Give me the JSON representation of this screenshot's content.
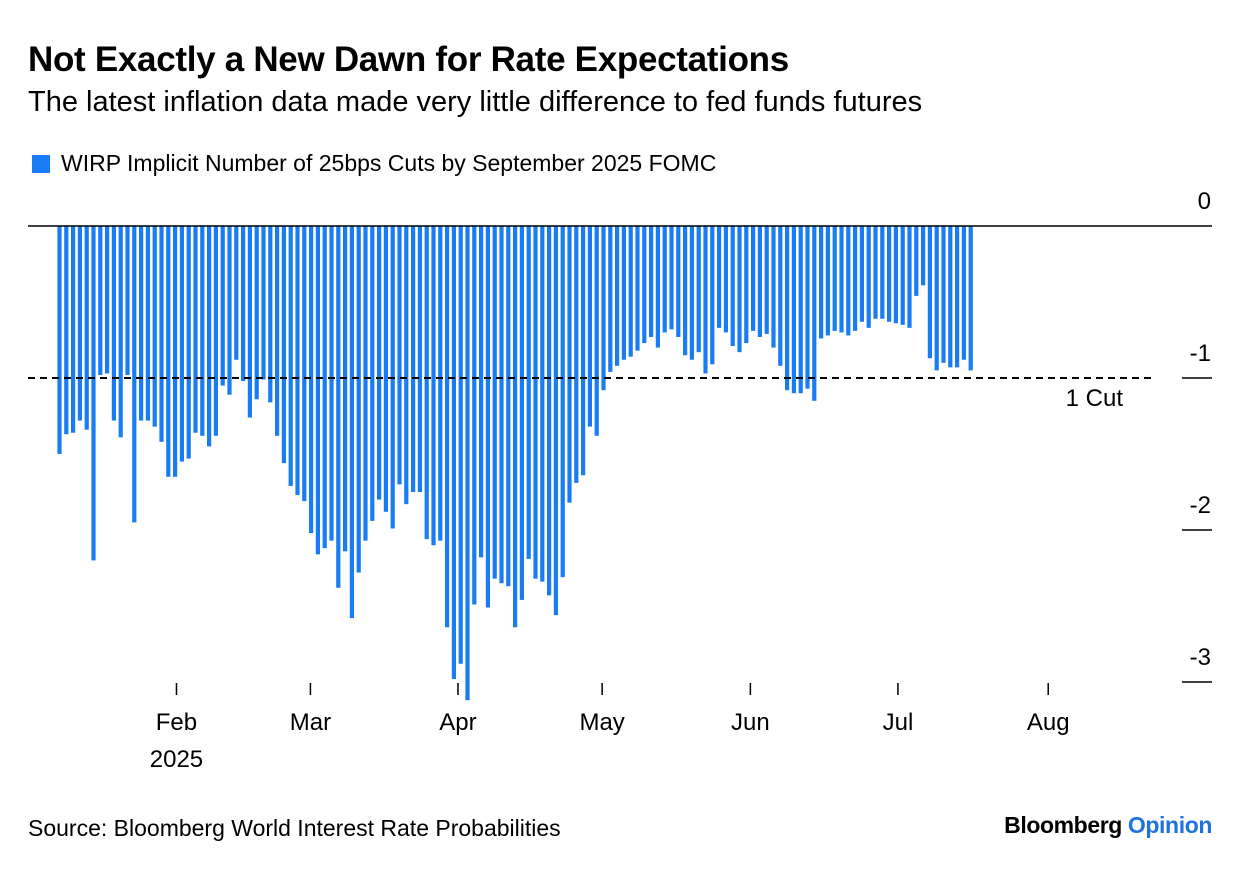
{
  "title": "Not Exactly a New Dawn for Rate Expectations",
  "subtitle": "The latest inflation data made very little difference to fed funds futures",
  "source": "Source: Bloomberg World Interest Rate Probabilities",
  "brand": {
    "name": "Bloomberg",
    "product": "Opinion",
    "name_color": "#000000",
    "product_color": "#1f73e0"
  },
  "colors": {
    "bar": "#1a7cf5",
    "axis": "#000000"
  },
  "chart_data": {
    "type": "bar",
    "legend": {
      "position": "top-left",
      "entries": [
        "WIRP Implicit Number of 25bps Cuts by September 2025 FOMC"
      ]
    },
    "series": [
      {
        "name": "WIRP Implicit Number of 25bps Cuts by September 2025 FOMC",
        "values": [
          -1.5,
          -1.37,
          -1.36,
          -1.28,
          -1.34,
          -2.2,
          -0.98,
          -0.97,
          -1.28,
          -1.39,
          -0.98,
          -1.95,
          -1.28,
          -1.28,
          -1.32,
          -1.42,
          -1.65,
          -1.65,
          -1.55,
          -1.53,
          -1.36,
          -1.38,
          -1.45,
          -1.38,
          -1.05,
          -1.11,
          -0.88,
          -1.02,
          -1.26,
          -1.14,
          -1.01,
          -1.16,
          -1.38,
          -1.56,
          -1.71,
          -1.77,
          -1.81,
          -2.02,
          -2.16,
          -2.12,
          -2.07,
          -2.38,
          -2.14,
          -2.58,
          -2.28,
          -2.07,
          -1.94,
          -1.8,
          -1.88,
          -1.99,
          -1.7,
          -1.83,
          -1.75,
          -1.75,
          -2.06,
          -2.1,
          -2.07,
          -2.64,
          -2.98,
          -2.88,
          -3.12,
          -2.49,
          -2.18,
          -2.51,
          -2.32,
          -2.35,
          -2.37,
          -2.64,
          -2.46,
          -2.19,
          -2.32,
          -2.34,
          -2.43,
          -2.56,
          -2.31,
          -1.82,
          -1.69,
          -1.64,
          -1.32,
          -1.38,
          -1.08,
          -0.96,
          -0.92,
          -0.88,
          -0.86,
          -0.82,
          -0.77,
          -0.73,
          -0.8,
          -0.7,
          -0.68,
          -0.73,
          -0.85,
          -0.88,
          -0.83,
          -0.97,
          -0.91,
          -0.67,
          -0.7,
          -0.79,
          -0.83,
          -0.77,
          -0.69,
          -0.73,
          -0.71,
          -0.8,
          -0.92,
          -1.08,
          -1.1,
          -1.1,
          -1.07,
          -1.15,
          -0.74,
          -0.72,
          -0.69,
          -0.7,
          -0.72,
          -0.69,
          -0.63,
          -0.67,
          -0.61,
          -0.61,
          -0.63,
          -0.64,
          -0.65,
          -0.67,
          -0.46,
          -0.39,
          -0.87,
          -0.95,
          -0.9,
          -0.93,
          -0.93,
          -0.88,
          -0.95
        ]
      }
    ],
    "x_ticks": [
      {
        "label": "Feb",
        "index": 17.2
      },
      {
        "label": "Mar",
        "index": 36.9
      },
      {
        "label": "Apr",
        "index": 58.6
      },
      {
        "label": "May",
        "index": 79.8
      },
      {
        "label": "Jun",
        "index": 101.6
      },
      {
        "label": "Jul",
        "index": 123.3
      },
      {
        "label": "Aug",
        "index": 145.4
      }
    ],
    "x_year_label": "2025",
    "y_ticks": [
      0,
      -1,
      -2,
      -3
    ],
    "ylim": [
      -3.2,
      0
    ],
    "reference_line": {
      "value": -1,
      "label": "1 Cut",
      "style": "dashed"
    },
    "grid": false
  }
}
